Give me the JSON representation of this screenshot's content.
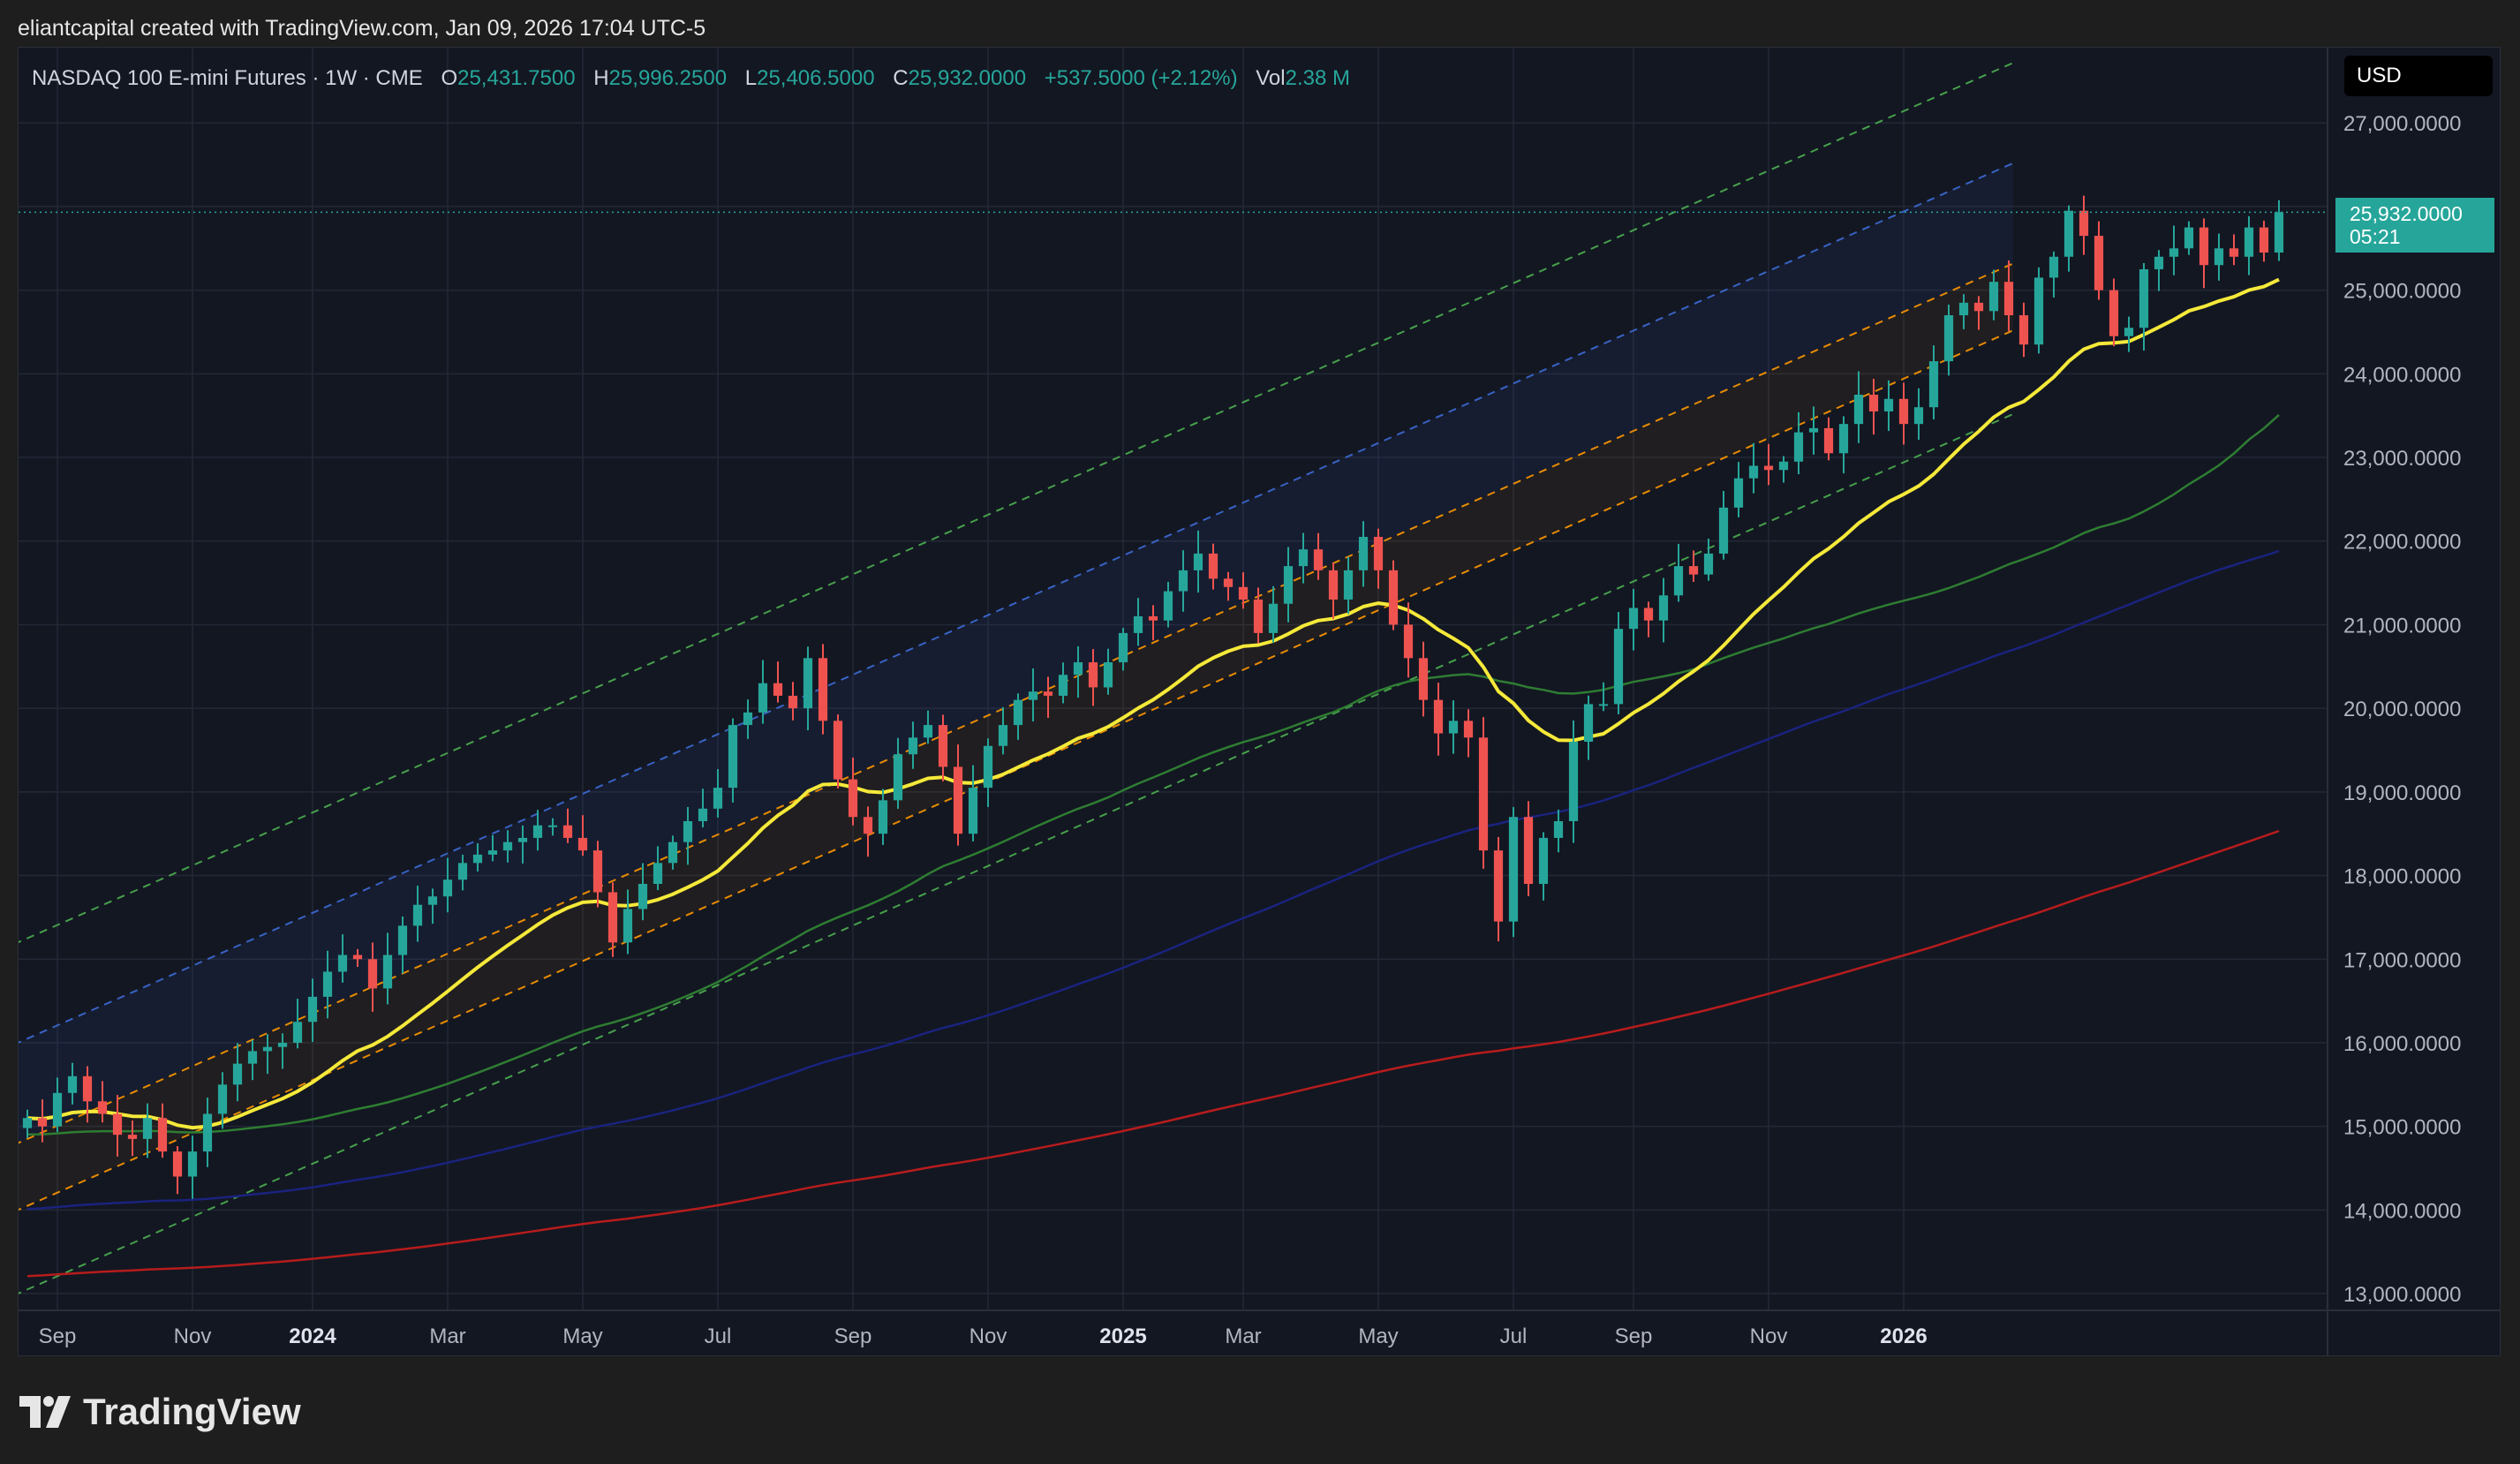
{
  "watermark": "eliantcapital created with TradingView.com, Jan 09, 2026 17:04 UTC-5",
  "legend": {
    "symbol": "NASDAQ 100 E-mini Futures · 1W · CME",
    "open_label": "O",
    "open": "25,431.7500",
    "high_label": "H",
    "high": "25,996.2500",
    "low_label": "L",
    "low": "25,406.5000",
    "close_label": "C",
    "close": "25,932.0000",
    "change": "+537.5000 (+2.12%)",
    "vol_label": "Vol",
    "vol": "2.38 M"
  },
  "currency": "USD",
  "last_price": {
    "price": "25,932.0000",
    "countdown": "05:21",
    "value": 25932
  },
  "brand": "TradingView",
  "colors": {
    "bg": "#131722",
    "grid": "#232836",
    "up": "#26a69a",
    "down": "#ef5350",
    "ema_yellow": "#f5e93a",
    "ma_green": "#2e7d32",
    "ma_blue": "#1a237e",
    "ma_red": "#b71c1c",
    "channel_green": "#4caf50",
    "channel_blue": "#3d6bd6",
    "channel_orange": "#ff9800"
  },
  "chart_data": {
    "type": "candlestick",
    "interval": "1W",
    "ylim": [
      12800,
      27900
    ],
    "y_ticks": [
      13000,
      14000,
      15000,
      16000,
      17000,
      18000,
      19000,
      20000,
      21000,
      22000,
      23000,
      24000,
      25000,
      26000,
      27000
    ],
    "y_tick_labels": [
      "13,000.0000",
      "14,000.0000",
      "15,000.0000",
      "16,000.0000",
      "17,000.0000",
      "18,000.0000",
      "19,000.0000",
      "20,000.0000",
      "21,000.0000",
      "22,000.0000",
      "23,000.0000",
      "24,000.0000",
      "25,000.0000",
      "26,000.0000",
      "27,000.0000"
    ],
    "x_ticks": [
      {
        "label": "Sep",
        "week": 2,
        "bold": false
      },
      {
        "label": "Nov",
        "week": 11,
        "bold": false
      },
      {
        "label": "2024",
        "week": 19,
        "bold": true
      },
      {
        "label": "Mar",
        "week": 28,
        "bold": false
      },
      {
        "label": "May",
        "week": 37,
        "bold": false
      },
      {
        "label": "Jul",
        "week": 46,
        "bold": false
      },
      {
        "label": "Sep",
        "week": 55,
        "bold": false
      },
      {
        "label": "Nov",
        "week": 64,
        "bold": false
      },
      {
        "label": "2025",
        "week": 73,
        "bold": true
      },
      {
        "label": "Mar",
        "week": 81,
        "bold": false
      },
      {
        "label": "May",
        "week": 90,
        "bold": false
      },
      {
        "label": "Jul",
        "week": 99,
        "bold": false
      },
      {
        "label": "Sep",
        "week": 107,
        "bold": false
      },
      {
        "label": "Nov",
        "week": 116,
        "bold": false
      },
      {
        "label": "2026",
        "week": 125,
        "bold": true
      }
    ],
    "close": [
      15100,
      15000,
      15400,
      15600,
      15300,
      15150,
      14900,
      14850,
      15100,
      14700,
      14400,
      14700,
      15150,
      15500,
      15750,
      15900,
      15950,
      16000,
      16250,
      16550,
      16850,
      17050,
      17000,
      16650,
      17050,
      17400,
      17650,
      17750,
      17950,
      18150,
      18250,
      18300,
      18400,
      18450,
      18600,
      18600,
      18450,
      18300,
      17800,
      17200,
      17600,
      17900,
      18150,
      18400,
      18650,
      18800,
      19050,
      19800,
      19950,
      20300,
      20150,
      20000,
      20600,
      19850,
      19150,
      18700,
      18500,
      18900,
      19450,
      19650,
      19800,
      19300,
      18500,
      19050,
      19550,
      19800,
      20100,
      20200,
      20150,
      20400,
      20550,
      20250,
      20550,
      20900,
      21100,
      21050,
      21400,
      21650,
      21850,
      21550,
      21450,
      21300,
      20900,
      21250,
      21700,
      21900,
      21650,
      21300,
      21650,
      22050,
      21650,
      21000,
      20600,
      20100,
      19700,
      19850,
      19650,
      18300,
      17450,
      18700,
      17900,
      18450,
      18650,
      19600,
      20050,
      20050,
      20950,
      21200,
      21050,
      21350,
      21700,
      21600,
      21850,
      22400,
      22750,
      22900,
      22850,
      22950,
      23300,
      23350,
      23050,
      23400,
      23750,
      23550,
      23700,
      23400,
      23600,
      24150,
      24700,
      24850,
      24750,
      25100,
      24700,
      24350,
      25150,
      25400,
      25950,
      25650,
      25000,
      24450,
      24550,
      25250,
      25400,
      25500,
      25750,
      25300,
      25500,
      25400,
      25750,
      25450,
      25932
    ],
    "ema_yellow_period": 20,
    "ma_green_period": 50,
    "ma_blue_period": 100,
    "ma_red_period": 200,
    "regression_channel": {
      "start_week": 0,
      "end_week": 127,
      "mid_start": 14850,
      "mid_end": 24900,
      "band_offsets": [
        {
          "offset": 2400,
          "color": "green"
        },
        {
          "offset": 1200,
          "color": "blue"
        },
        {
          "offset": 0,
          "color": "orange"
        },
        {
          "offset": -800,
          "color": "orange"
        },
        {
          "offset": -1800,
          "color": "green"
        }
      ]
    }
  }
}
